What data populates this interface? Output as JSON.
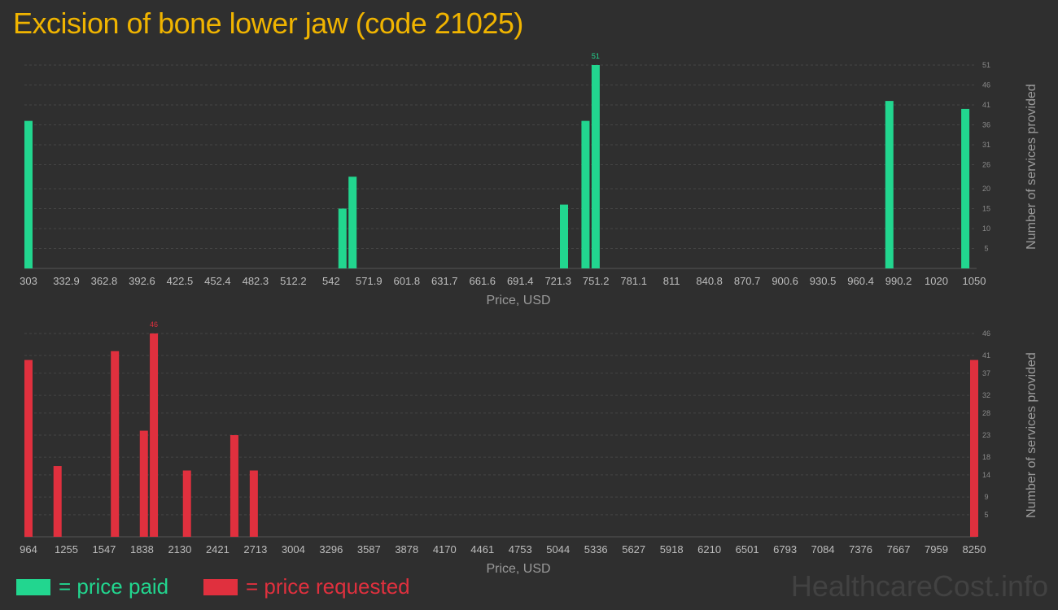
{
  "page": {
    "title": "Excision of bone lower jaw (code 21025)",
    "brand": "HealthcareCost.info"
  },
  "colors": {
    "paid": "#22d68f",
    "requested": "#e0303e",
    "title": "#f0b400"
  },
  "legend": {
    "paid_label": "= price paid",
    "requested_label": "= price requested"
  },
  "chart_data": [
    {
      "type": "bar",
      "series_key": "paid",
      "xlabel": "Price, USD",
      "ylabel": "Number of services provided",
      "x_range": [
        303,
        1050
      ],
      "y_range": [
        0,
        51
      ],
      "x_ticks": [
        "303",
        "332.9",
        "362.8",
        "392.6",
        "422.5",
        "452.4",
        "482.3",
        "512.2",
        "542",
        "571.9",
        "601.8",
        "631.7",
        "661.6",
        "691.4",
        "721.3",
        "751.2",
        "781.1",
        "811",
        "840.8",
        "870.7",
        "900.6",
        "930.5",
        "960.4",
        "990.2",
        "1020",
        "1050"
      ],
      "y_ticks": [
        5,
        10,
        15,
        20,
        26,
        31,
        36,
        41,
        46,
        51
      ],
      "bars": [
        {
          "x": 303,
          "y": 37
        },
        {
          "x": 551,
          "y": 15
        },
        {
          "x": 559,
          "y": 23
        },
        {
          "x": 726,
          "y": 16
        },
        {
          "x": 743,
          "y": 37
        },
        {
          "x": 751,
          "y": 51,
          "label": "51"
        },
        {
          "x": 983,
          "y": 42
        },
        {
          "x": 1043,
          "y": 40
        }
      ]
    },
    {
      "type": "bar",
      "series_key": "requested",
      "xlabel": "Price, USD",
      "ylabel": "Number of services provided",
      "x_range": [
        964,
        8250
      ],
      "y_range": [
        0,
        46
      ],
      "x_ticks": [
        "964",
        "1255",
        "1547",
        "1838",
        "2130",
        "2421",
        "2713",
        "3004",
        "3296",
        "3587",
        "3878",
        "4170",
        "4461",
        "4753",
        "5044",
        "5336",
        "5627",
        "5918",
        "6210",
        "6501",
        "6793",
        "7084",
        "7376",
        "7667",
        "7959",
        "8250"
      ],
      "y_ticks": [
        5,
        9,
        14,
        18,
        23,
        28,
        32,
        37,
        41,
        46
      ],
      "bars": [
        {
          "x": 964,
          "y": 40
        },
        {
          "x": 1188,
          "y": 16
        },
        {
          "x": 1630,
          "y": 42
        },
        {
          "x": 1853,
          "y": 24
        },
        {
          "x": 1930,
          "y": 46,
          "label": "46"
        },
        {
          "x": 2185,
          "y": 15
        },
        {
          "x": 2550,
          "y": 23
        },
        {
          "x": 2700,
          "y": 15
        },
        {
          "x": 8250,
          "y": 40
        }
      ]
    }
  ]
}
